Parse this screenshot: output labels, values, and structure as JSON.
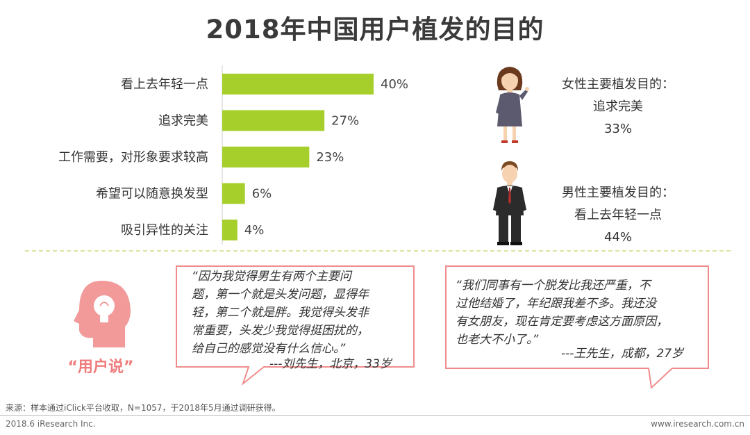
{
  "title": "2018年中国用户植发的目的",
  "chart_data": {
    "type": "bar",
    "orientation": "horizontal",
    "categories": [
      "看上去年轻一点",
      "追求完美",
      "工作需要，对形象要求较高",
      "希望可以随意换发型",
      "吸引异性的关注"
    ],
    "values": [
      40,
      27,
      23,
      6,
      4
    ],
    "value_labels": [
      "40%",
      "27%",
      "23%",
      "6%",
      "4%"
    ],
    "unit": "%",
    "xlim": [
      0,
      40
    ],
    "bar_color": "#a6cf2c"
  },
  "female": {
    "heading": "女性主要植发目的：",
    "purpose": "追求完美",
    "percent": "33%"
  },
  "male": {
    "heading": "男性主要植发目的：",
    "purpose": "看上去年轻一点",
    "percent": "44%"
  },
  "user_say_label": "“用户说”",
  "quote1": {
    "lines": [
      "“因为我觉得男生有两个主要问",
      "题，第一个就是头发问题，显得年",
      "轻，第二个就是胖。我觉得头发非",
      "常重要，头发少我觉得挺困扰的，",
      "给自己的感觉没有什么信心。”"
    ],
    "signature": "---刘先生，北京，33岁"
  },
  "quote2": {
    "lines": [
      "“我们同事有一个脱发比我还严重，不",
      "过他结婚了，年纪跟我差不多。我还没",
      "有女朋友，现在肯定要考虑这方面原因，",
      "也老大不小了。”"
    ],
    "signature": "---王先生，成都，27岁"
  },
  "source": "来源：样本通过iClick平台收取，N=1057，于2018年5月通过调研获得。",
  "footer_left": "2018.6 iResearch Inc.",
  "footer_right": "www.iresearch.com.cn",
  "colors": {
    "bar": "#a6cf2c",
    "bubble_border": "#f08c8c",
    "accent_pink": "#ef7c7c"
  }
}
